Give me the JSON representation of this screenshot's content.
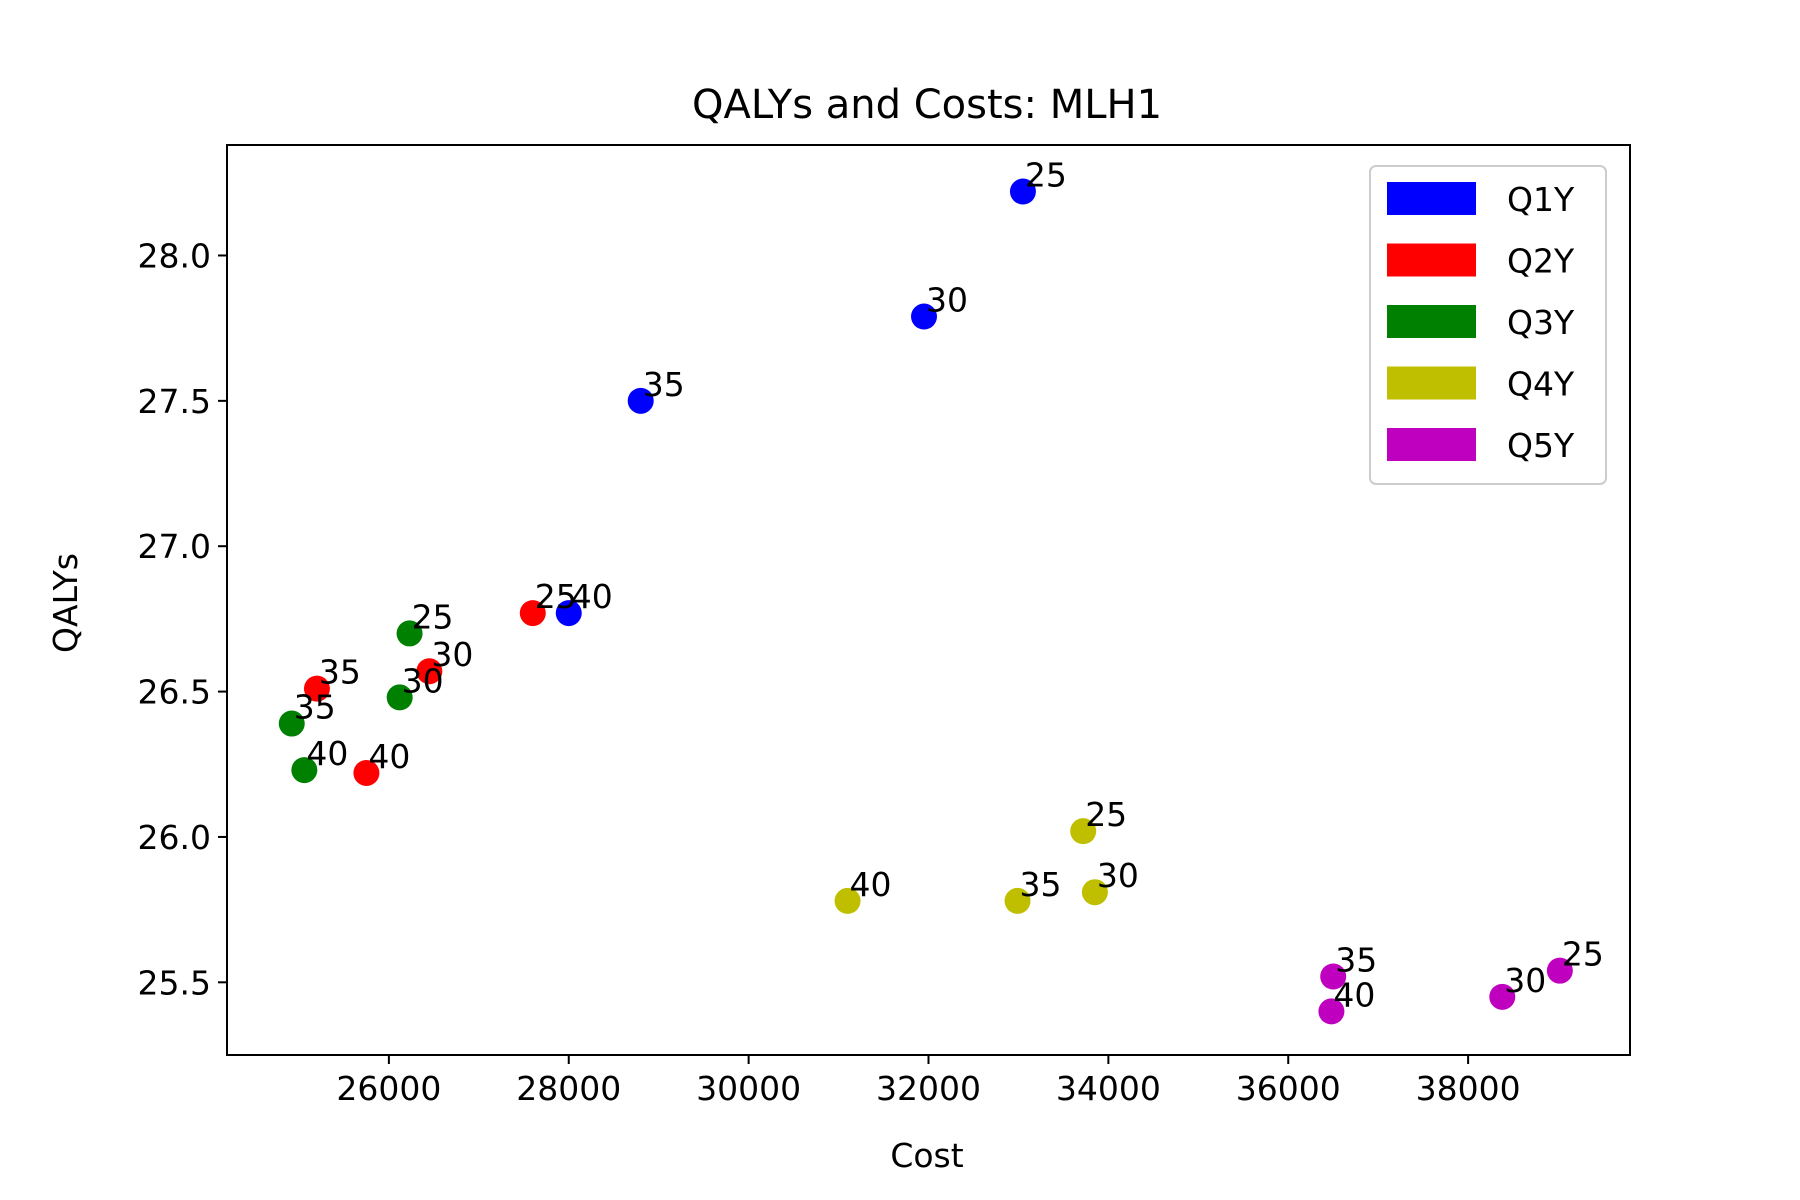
{
  "chart_data": {
    "type": "scatter",
    "title": "QALYs and Costs: MLH1",
    "xlabel": "Cost",
    "ylabel": "QALYs",
    "xlim": [
      24200,
      39800
    ],
    "ylim": [
      25.25,
      28.38
    ],
    "xticks": [
      26000,
      28000,
      30000,
      32000,
      34000,
      36000,
      38000
    ],
    "xtick_labels": [
      "26000",
      "28000",
      "30000",
      "32000",
      "34000",
      "36000",
      "38000"
    ],
    "yticks": [
      25.5,
      26.0,
      26.5,
      27.0,
      27.5,
      28.0
    ],
    "ytick_labels": [
      "25.5",
      "26.0",
      "26.5",
      "27.0",
      "27.5",
      "28.0"
    ],
    "grid": false,
    "legend_position": "top-right",
    "series": [
      {
        "name": "Q1Y",
        "color": "#0000ff",
        "points": [
          {
            "x": 33050,
            "y": 28.22,
            "label": "25"
          },
          {
            "x": 31950,
            "y": 27.79,
            "label": "30"
          },
          {
            "x": 28800,
            "y": 27.5,
            "label": "35"
          },
          {
            "x": 28000,
            "y": 26.77,
            "label": "40"
          }
        ]
      },
      {
        "name": "Q2Y",
        "color": "#ff0000",
        "points": [
          {
            "x": 27600,
            "y": 26.77,
            "label": "25"
          },
          {
            "x": 26450,
            "y": 26.57,
            "label": "30"
          },
          {
            "x": 25200,
            "y": 26.51,
            "label": "35"
          },
          {
            "x": 25750,
            "y": 26.22,
            "label": "40"
          }
        ]
      },
      {
        "name": "Q3Y",
        "color": "#008000",
        "points": [
          {
            "x": 26230,
            "y": 26.7,
            "label": "25"
          },
          {
            "x": 26120,
            "y": 26.48,
            "label": "30"
          },
          {
            "x": 24920,
            "y": 26.39,
            "label": "35"
          },
          {
            "x": 25060,
            "y": 26.23,
            "label": "40"
          }
        ]
      },
      {
        "name": "Q4Y",
        "color": "#bfbf00",
        "points": [
          {
            "x": 33720,
            "y": 26.02,
            "label": "25"
          },
          {
            "x": 33850,
            "y": 25.81,
            "label": "30"
          },
          {
            "x": 32990,
            "y": 25.78,
            "label": "35"
          },
          {
            "x": 31100,
            "y": 25.78,
            "label": "40"
          }
        ]
      },
      {
        "name": "Q5Y",
        "color": "#bf00bf",
        "points": [
          {
            "x": 39020,
            "y": 25.54,
            "label": "25"
          },
          {
            "x": 38380,
            "y": 25.45,
            "label": "30"
          },
          {
            "x": 36500,
            "y": 25.52,
            "label": "35"
          },
          {
            "x": 36480,
            "y": 25.4,
            "label": "40"
          }
        ]
      }
    ]
  }
}
